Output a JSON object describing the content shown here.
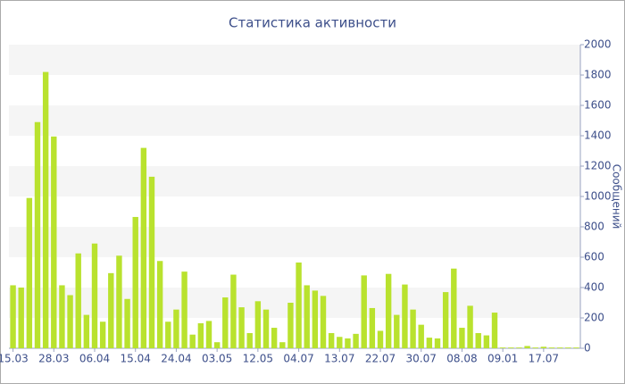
{
  "chart_data": {
    "type": "bar",
    "title": "Статистика активности",
    "y_label": "Сообщений",
    "categories": [
      "15.03",
      null,
      null,
      null,
      null,
      "28.03",
      null,
      null,
      null,
      null,
      "06.04",
      null,
      null,
      null,
      null,
      "15.04",
      null,
      null,
      null,
      null,
      "24.04",
      null,
      null,
      null,
      null,
      "03.05",
      null,
      null,
      null,
      null,
      "12.05",
      null,
      null,
      null,
      null,
      "04.07",
      null,
      null,
      null,
      null,
      "13.07",
      null,
      null,
      null,
      null,
      "22.07",
      null,
      null,
      null,
      null,
      "30.07",
      null,
      null,
      null,
      null,
      "08.08",
      null,
      null,
      null,
      null,
      "09.01",
      null,
      null,
      null,
      null,
      "17.07",
      null,
      null,
      null,
      null
    ],
    "values": [
      415,
      400,
      990,
      1490,
      1820,
      1395,
      415,
      350,
      625,
      220,
      690,
      175,
      495,
      610,
      325,
      865,
      1320,
      1130,
      575,
      175,
      255,
      505,
      90,
      165,
      180,
      40,
      335,
      485,
      270,
      100,
      310,
      255,
      135,
      40,
      300,
      565,
      415,
      380,
      345,
      100,
      75,
      65,
      95,
      480,
      265,
      115,
      490,
      220,
      420,
      255,
      155,
      70,
      65,
      370,
      525,
      135,
      280,
      100,
      85,
      235,
      5,
      5,
      5,
      15,
      5,
      10,
      5,
      5,
      5,
      5
    ],
    "color": "#b9e22e",
    "band_color": "#f5f5f5",
    "ylim": [
      0,
      2000
    ],
    "yticks": [
      0,
      200,
      400,
      600,
      800,
      1000,
      1200,
      1400,
      1600,
      1800,
      2000
    ],
    "grid": true
  }
}
